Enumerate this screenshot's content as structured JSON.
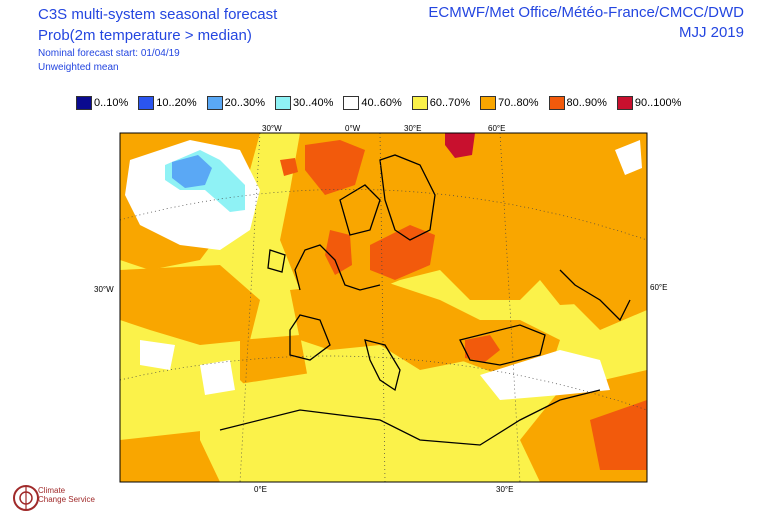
{
  "header": {
    "title": "C3S multi-system seasonal forecast",
    "subtitle": "Prob(2m temperature > median)",
    "start": "Nominal forecast start: 01/04/19",
    "mean": "Unweighted mean",
    "providers": "ECMWF/Met Office/Météo-France/CMCC/DWD",
    "period": "MJJ 2019"
  },
  "legend": [
    {
      "label": "0..10%",
      "color": "#0a0a8f"
    },
    {
      "label": "10..20%",
      "color": "#2b55f0"
    },
    {
      "label": "20..30%",
      "color": "#5aa8f5"
    },
    {
      "label": "30..40%",
      "color": "#8ff2f5"
    },
    {
      "label": "40..60%",
      "color": "#ffffff"
    },
    {
      "label": "60..70%",
      "color": "#fbf24a"
    },
    {
      "label": "70..80%",
      "color": "#f9a600"
    },
    {
      "label": "80..90%",
      "color": "#f25a0c"
    },
    {
      "label": "90..100%",
      "color": "#c8102e"
    }
  ],
  "axes": {
    "top": [
      "30°W",
      "0°W",
      "30°E",
      "60°E"
    ],
    "left": "30°W",
    "right": "60°E",
    "bottom": [
      "0°E",
      "30°E"
    ]
  },
  "logo": {
    "line1": "Climate",
    "line2": "Change Service"
  }
}
